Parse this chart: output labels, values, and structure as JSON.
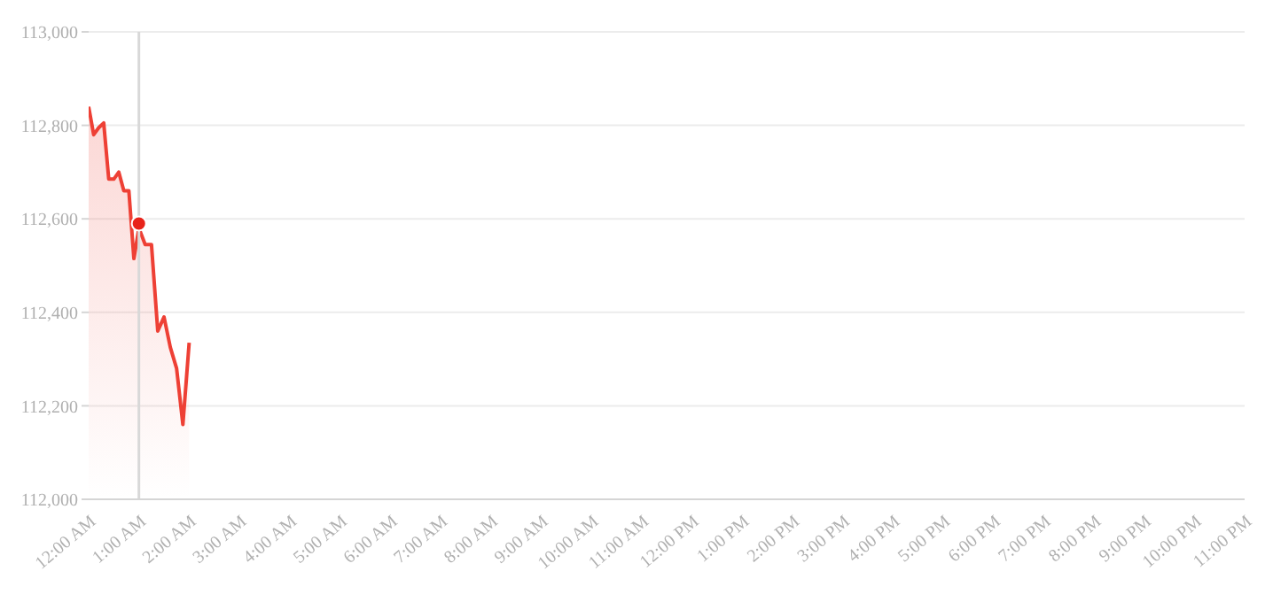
{
  "chart_data": {
    "type": "area",
    "x": [
      0,
      0.1,
      0.2,
      0.3,
      0.4,
      0.5,
      0.6,
      0.7,
      0.8,
      0.9,
      1,
      1.125,
      1.25,
      1.375,
      1.5,
      1.625,
      1.75,
      1.875,
      2
    ],
    "series": [
      {
        "color": "#ee4035",
        "values": [
          112840,
          112780,
          112795,
          112805,
          112685,
          112685,
          112700,
          112660,
          112660,
          112515,
          112580,
          112545,
          112545,
          112360,
          112390,
          112325,
          112280,
          112160,
          112335
        ]
      },
      {
        "type": "scatter",
        "marker": "circle",
        "color": "#e8231a",
        "x": [
          1
        ],
        "values": [
          112590
        ]
      }
    ],
    "ylim": [
      112000,
      113000
    ],
    "yticks": [
      {
        "value": 112000,
        "label": "112,000"
      },
      {
        "value": 112200,
        "label": "112,200"
      },
      {
        "value": 112400,
        "label": "112,400"
      },
      {
        "value": 112600,
        "label": "112,600"
      },
      {
        "value": 112800,
        "label": "112,800"
      },
      {
        "value": 113000,
        "label": "113,000"
      }
    ],
    "xlim": [
      0,
      23
    ],
    "xticks": [
      {
        "value": 0,
        "label": "12:00 AM"
      },
      {
        "value": 1,
        "label": "1:00 AM"
      },
      {
        "value": 2,
        "label": "2:00 AM"
      },
      {
        "value": 3,
        "label": "3:00 AM"
      },
      {
        "value": 4,
        "label": "4:00 AM"
      },
      {
        "value": 5,
        "label": "5:00 AM"
      },
      {
        "value": 6,
        "label": "6:00 AM"
      },
      {
        "value": 7,
        "label": "7:00 AM"
      },
      {
        "value": 8,
        "label": "8:00 AM"
      },
      {
        "value": 9,
        "label": "9:00 AM"
      },
      {
        "value": 10,
        "label": "10:00 AM"
      },
      {
        "value": 11,
        "label": "11:00 AM"
      },
      {
        "value": 12,
        "label": "12:00 PM"
      },
      {
        "value": 13,
        "label": "1:00 PM"
      },
      {
        "value": 14,
        "label": "2:00 PM"
      },
      {
        "value": 15,
        "label": "3:00 PM"
      },
      {
        "value": 16,
        "label": "4:00 PM"
      },
      {
        "value": 17,
        "label": "5:00 PM"
      },
      {
        "value": 18,
        "label": "6:00 PM"
      },
      {
        "value": 19,
        "label": "7:00 PM"
      },
      {
        "value": 20,
        "label": "8:00 PM"
      },
      {
        "value": 21,
        "label": "9:00 PM"
      },
      {
        "value": 22,
        "label": "10:00 PM"
      },
      {
        "value": 23,
        "label": "11:00 PM"
      }
    ],
    "ref_lines": [
      {
        "axis": "x",
        "value": 1,
        "color": "#d8d8d8"
      }
    ],
    "grid": "y",
    "marker": "none",
    "legend": false
  }
}
